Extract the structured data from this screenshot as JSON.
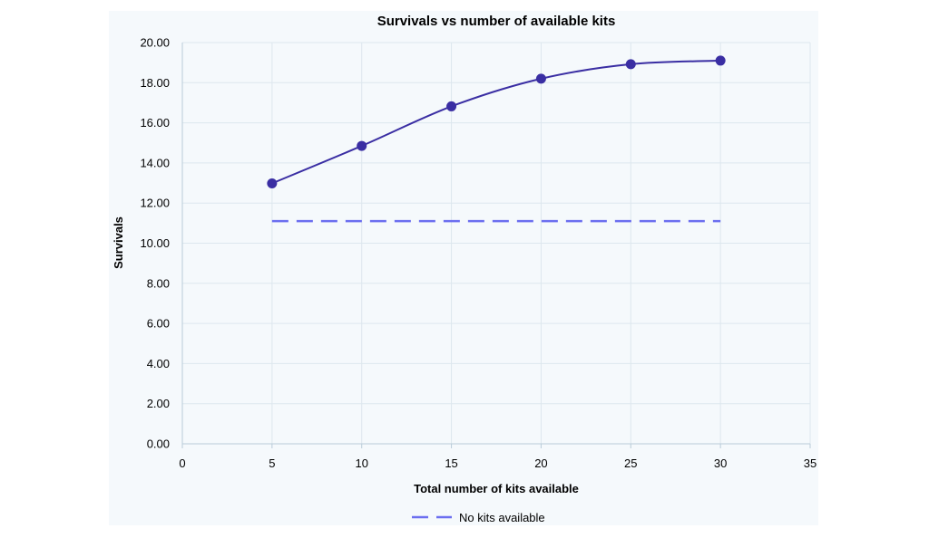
{
  "chart_data": {
    "type": "line",
    "title": "Survivals vs number of available kits",
    "xlabel": "Total number of kits available",
    "ylabel": "Survivals",
    "xlim": [
      0,
      35
    ],
    "ylim": [
      0,
      20
    ],
    "x_ticks": [
      "0",
      "5",
      "10",
      "15",
      "20",
      "25",
      "30",
      "35"
    ],
    "y_ticks": [
      "0.00",
      "2.00",
      "4.00",
      "6.00",
      "8.00",
      "10.00",
      "12.00",
      "14.00",
      "16.00",
      "18.00",
      "20.00"
    ],
    "grid": true,
    "legend_position": "bottom",
    "series": [
      {
        "x": [
          5,
          10,
          15,
          20,
          25,
          30
        ],
        "y": [
          12.98,
          14.85,
          16.82,
          18.2,
          18.92,
          19.1
        ],
        "color": "#3a2ea3",
        "style": "solid-markers"
      },
      {
        "name": "No kits available",
        "x": [
          5,
          30
        ],
        "y": [
          11.1,
          11.1
        ],
        "color": "#6b6ef0",
        "style": "dashed"
      }
    ]
  }
}
